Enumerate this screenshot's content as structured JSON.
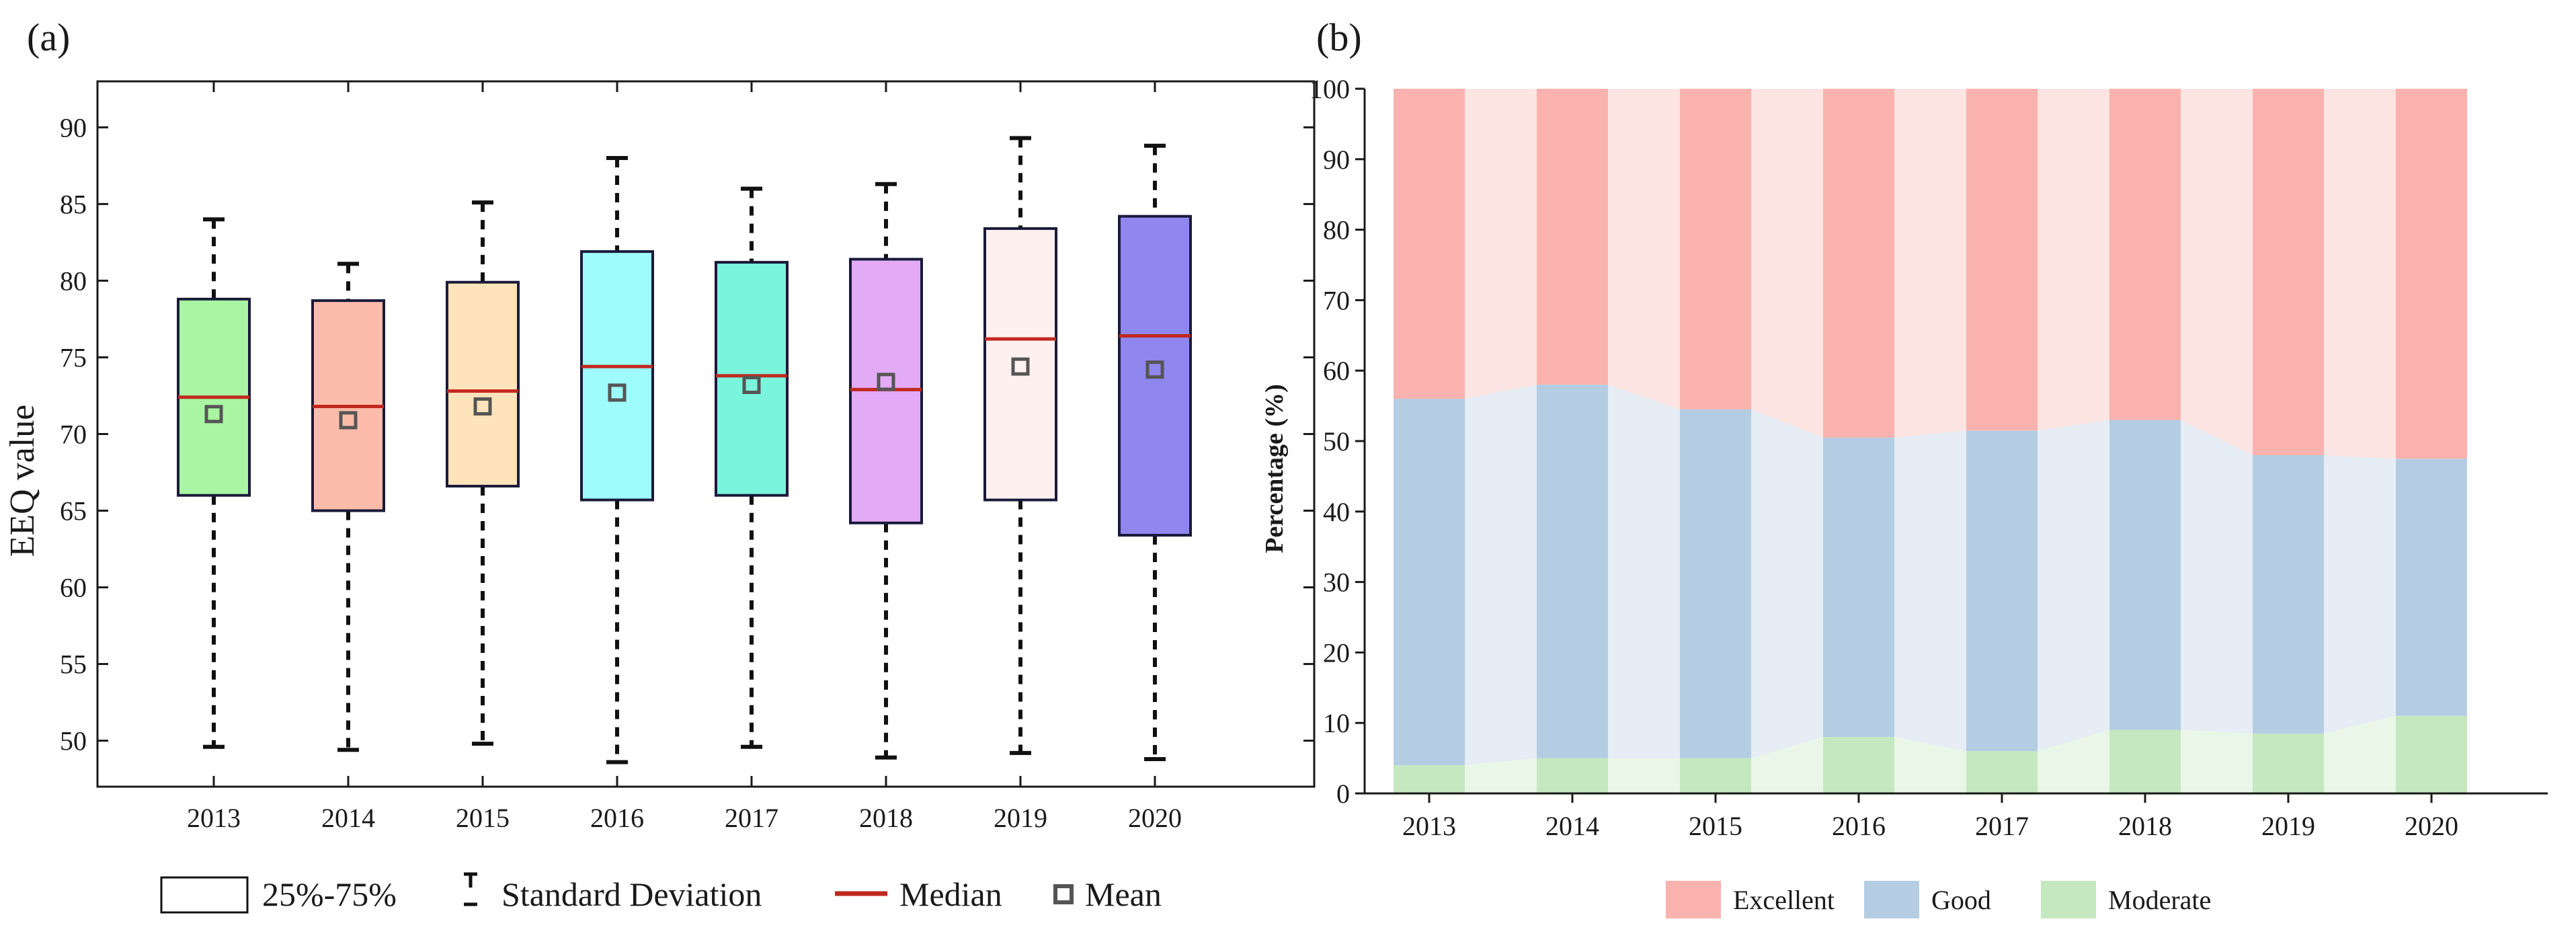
{
  "chart_data": [
    {
      "panel": "(a)",
      "type": "box",
      "ylabel": "EEQ value",
      "ylim": [
        47,
        93
      ],
      "yticks": [
        50,
        55,
        60,
        65,
        70,
        75,
        80,
        85,
        90
      ],
      "categories": [
        "2013",
        "2014",
        "2015",
        "2016",
        "2017",
        "2018",
        "2019",
        "2020"
      ],
      "boxes": [
        {
          "year": "2013",
          "whisker_low": 49.6,
          "q1": 66.0,
          "median": 72.4,
          "mean": 71.3,
          "q3": 78.8,
          "whisker_high": 84.0,
          "color": "#a9f5a3"
        },
        {
          "year": "2014",
          "whisker_low": 49.4,
          "q1": 65.0,
          "median": 71.8,
          "mean": 70.9,
          "q3": 78.7,
          "whisker_high": 81.1,
          "color": "#fdbcaa"
        },
        {
          "year": "2015",
          "whisker_low": 49.8,
          "q1": 66.6,
          "median": 72.8,
          "mean": 71.8,
          "q3": 79.9,
          "whisker_high": 85.1,
          "color": "#ffe3ba"
        },
        {
          "year": "2016",
          "whisker_low": 48.6,
          "q1": 65.7,
          "median": 74.4,
          "mean": 72.7,
          "q3": 81.9,
          "whisker_high": 88.0,
          "color": "#9efcfc"
        },
        {
          "year": "2017",
          "whisker_low": 49.6,
          "q1": 66.0,
          "median": 73.8,
          "mean": 73.2,
          "q3": 81.2,
          "whisker_high": 86.0,
          "color": "#7af5dc"
        },
        {
          "year": "2018",
          "whisker_low": 48.9,
          "q1": 64.2,
          "median": 72.9,
          "mean": 73.4,
          "q3": 81.4,
          "whisker_high": 86.3,
          "color": "#e3aaf5"
        },
        {
          "year": "2019",
          "whisker_low": 49.2,
          "q1": 65.7,
          "median": 76.2,
          "mean": 74.4,
          "q3": 83.4,
          "whisker_high": 89.3,
          "color": "#fff0f0"
        },
        {
          "year": "2020",
          "whisker_low": 48.8,
          "q1": 63.4,
          "median": 76.4,
          "mean": 74.2,
          "q3": 84.2,
          "whisker_high": 88.8,
          "color": "#8f86ee"
        }
      ],
      "legend": [
        {
          "label": "25%-75%",
          "symbol": "box"
        },
        {
          "label": "Standard Deviation",
          "symbol": "whisker"
        },
        {
          "label": "Median",
          "symbol": "line"
        },
        {
          "label": "Mean",
          "symbol": "square"
        }
      ],
      "colors": {
        "median": "#c0281e",
        "box_edge": "#1a1a3a",
        "mean_marker": "#555555"
      }
    },
    {
      "panel": "(b)",
      "type": "stacked_bar",
      "ylabel": "Percentage (%)",
      "ylim": [
        0,
        100
      ],
      "yticks": [
        0,
        10,
        20,
        30,
        40,
        50,
        60,
        70,
        80,
        90,
        100
      ],
      "categories": [
        "2013",
        "2014",
        "2015",
        "2016",
        "2017",
        "2018",
        "2019",
        "2020"
      ],
      "series": [
        {
          "name": "Moderate",
          "values": [
            4,
            5,
            5,
            8,
            6,
            9,
            8.5,
            11
          ],
          "color": "#c5e8c0",
          "band_color": "#eaf6e8"
        },
        {
          "name": "Good",
          "values": [
            52,
            53,
            49.5,
            42.5,
            45.5,
            44,
            39.5,
            36.5
          ],
          "color": "#b4cde3",
          "band_color": "#e6edf4"
        },
        {
          "name": "Excellent",
          "values": [
            44,
            42,
            45.5,
            49.5,
            48.5,
            47,
            52,
            52.5
          ],
          "color": "#f9b2ad",
          "band_color": "#fde5e3"
        }
      ],
      "legend_order": [
        "Excellent",
        "Good",
        "Moderate"
      ]
    }
  ]
}
